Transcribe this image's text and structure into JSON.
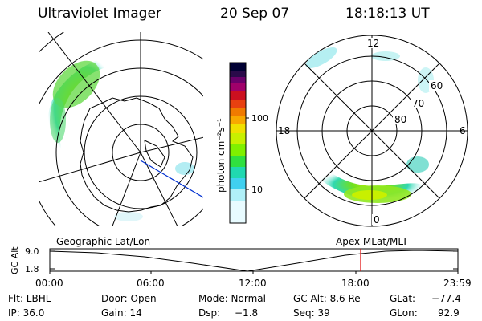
{
  "header": {
    "instrument": "Ultraviolet Imager",
    "date": "20 Sep 07",
    "time": "18:18:13 UT"
  },
  "colorbar": {
    "unit_label": "photon cm⁻²s⁻¹",
    "ticks": [
      "100",
      "10"
    ],
    "colors": [
      "#000033",
      "#2a0a4a",
      "#6a006a",
      "#a0006a",
      "#cc1020",
      "#e84010",
      "#f07a00",
      "#f8a800",
      "#f0e000",
      "#c8f000",
      "#80f000",
      "#30e040",
      "#20d8b0",
      "#40d0f0",
      "#b0f0f8",
      "#e8fbff"
    ]
  },
  "polar_plot": {
    "labels": {
      "top": "12",
      "left": "18",
      "right": "6",
      "bottom": "0"
    },
    "rings": [
      "60",
      "70",
      "80"
    ]
  },
  "map_plot": {
    "label": "Geographic Lat/Lon"
  },
  "timeline": {
    "right_label": "Apex  MLat/MLT",
    "y_axis_label": "GC Alt",
    "y_ticks": [
      "9.0",
      "1.8"
    ],
    "x_ticks": [
      "00:00",
      "06:00",
      "12:00",
      "18:00",
      "23:59"
    ],
    "marker_time": "18:18",
    "marker_color": "#e00000"
  },
  "footer": {
    "filter": "Flt: LBHL",
    "ip": "IP: 36.0",
    "door": "Door: Open",
    "gain": "Gain: 14",
    "mode": "Mode: Normal",
    "dsp": "Dsp:",
    "dsp_value": "−1.8",
    "gc_alt": "GC Alt: 8.6 Re",
    "seq": "Seq: 39",
    "glat": "GLat:",
    "glat_value": "−77.4",
    "glon": "GLon:",
    "glon_value": "92.9"
  }
}
